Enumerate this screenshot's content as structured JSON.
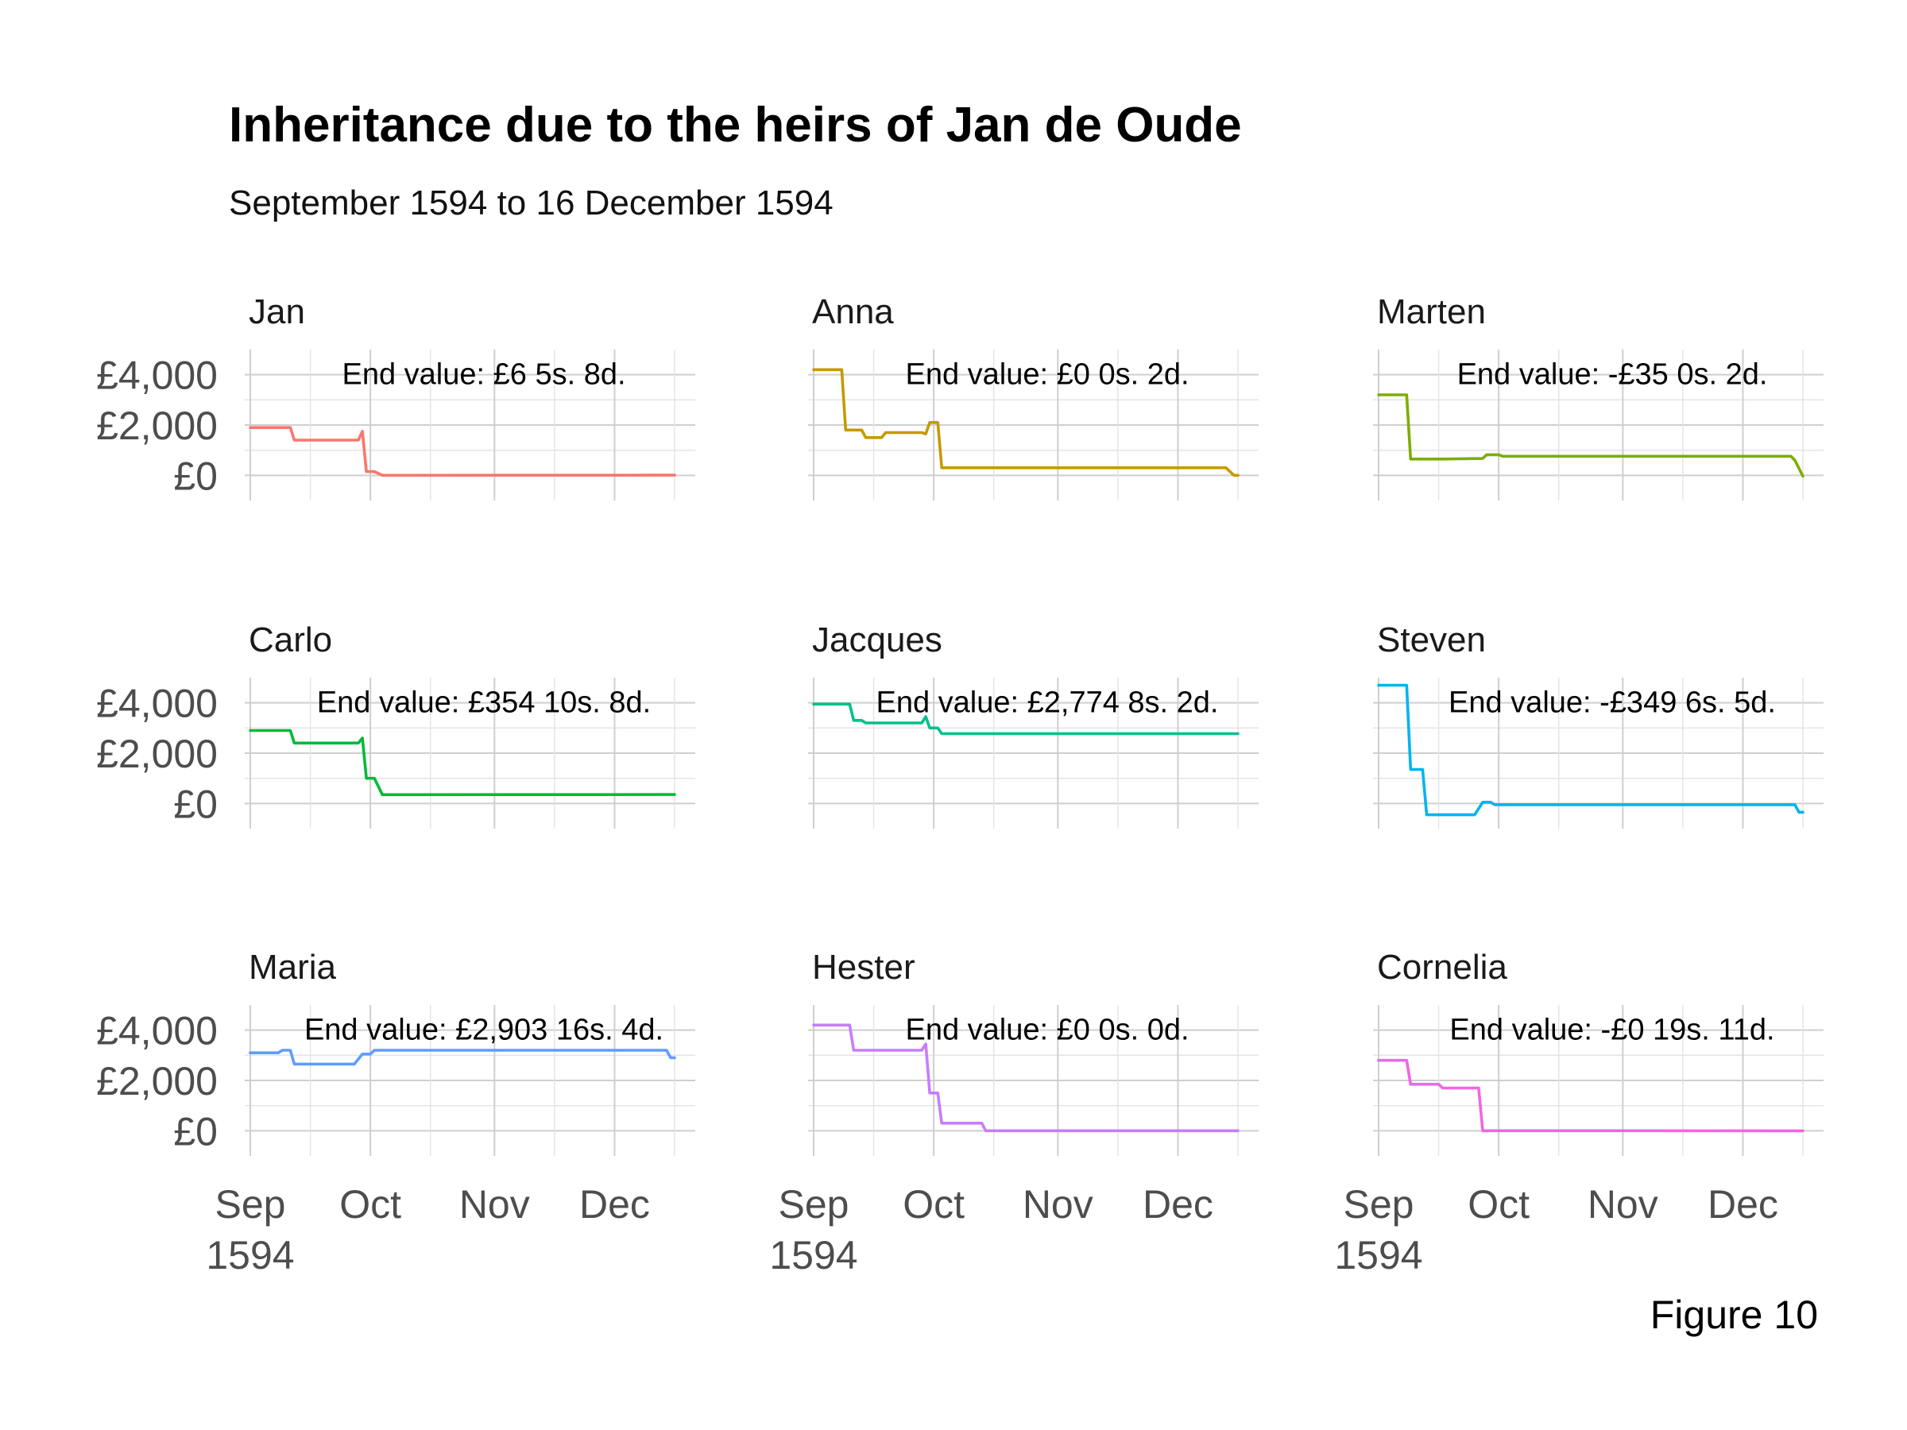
{
  "title": "Inheritance due to the heirs of Jan de Oude",
  "subtitle": "September 1594 to 16 December 1594",
  "caption": "Figure 10",
  "chart_data": {
    "type": "line",
    "facets": "3x3",
    "x_axis": {
      "range": [
        "1594-09-01",
        "1594-12-16"
      ],
      "ticks": [
        {
          "date": "1594-09-01",
          "label": "Sep",
          "sublabel": "1594"
        },
        {
          "date": "1594-10-01",
          "label": "Oct",
          "sublabel": ""
        },
        {
          "date": "1594-11-01",
          "label": "Nov",
          "sublabel": ""
        },
        {
          "date": "1594-12-01",
          "label": "Dec",
          "sublabel": ""
        }
      ],
      "minor_ticks": [
        "1594-09-16",
        "1594-10-16",
        "1594-11-16",
        "1594-12-16"
      ]
    },
    "y_axis": {
      "range": [
        -1000,
        5000
      ],
      "ticks": [
        {
          "value": 0,
          "label": "£0"
        },
        {
          "value": 2000,
          "label": "£2,000"
        },
        {
          "value": 4000,
          "label": "£4,000"
        }
      ],
      "minor_ticks": [
        1000,
        3000
      ]
    },
    "grid": true,
    "legend": "none",
    "series": [
      {
        "name": "Jan",
        "color": "#F8766D",
        "annotation": "End value: £6 5s. 8d.",
        "points": [
          [
            "1594-09-01",
            1900
          ],
          [
            "1594-09-11",
            1900
          ],
          [
            "1594-09-12",
            1400
          ],
          [
            "1594-09-28",
            1400
          ],
          [
            "1594-09-29",
            1750
          ],
          [
            "1594-09-30",
            150
          ],
          [
            "1594-10-02",
            150
          ],
          [
            "1594-10-04",
            0
          ],
          [
            "1594-12-16",
            6
          ]
        ]
      },
      {
        "name": "Anna",
        "color": "#C49A00",
        "annotation": "End value: £0 0s. 2d.",
        "points": [
          [
            "1594-09-01",
            4200
          ],
          [
            "1594-09-08",
            4200
          ],
          [
            "1594-09-09",
            1800
          ],
          [
            "1594-09-13",
            1800
          ],
          [
            "1594-09-14",
            1500
          ],
          [
            "1594-09-18",
            1500
          ],
          [
            "1594-09-19",
            1700
          ],
          [
            "1594-09-28",
            1700
          ],
          [
            "1594-09-29",
            1650
          ],
          [
            "1594-09-30",
            2100
          ],
          [
            "1594-10-02",
            2100
          ],
          [
            "1594-10-03",
            300
          ],
          [
            "1594-12-13",
            300
          ],
          [
            "1594-12-15",
            0
          ],
          [
            "1594-12-16",
            0
          ]
        ]
      },
      {
        "name": "Marten",
        "color": "#7CAE00",
        "annotation": "End value: -£35 0s. 2d.",
        "points": [
          [
            "1594-09-01",
            3200
          ],
          [
            "1594-09-08",
            3200
          ],
          [
            "1594-09-09",
            650
          ],
          [
            "1594-09-17",
            650
          ],
          [
            "1594-09-27",
            670
          ],
          [
            "1594-09-28",
            820
          ],
          [
            "1594-10-01",
            820
          ],
          [
            "1594-10-02",
            760
          ],
          [
            "1594-12-13",
            760
          ],
          [
            "1594-12-14",
            600
          ],
          [
            "1594-12-16",
            -35
          ]
        ]
      },
      {
        "name": "Carlo",
        "color": "#00BA38",
        "annotation": "End value: £354 10s. 8d.",
        "points": [
          [
            "1594-09-01",
            2900
          ],
          [
            "1594-09-11",
            2900
          ],
          [
            "1594-09-12",
            2400
          ],
          [
            "1594-09-28",
            2400
          ],
          [
            "1594-09-29",
            2600
          ],
          [
            "1594-09-30",
            1000
          ],
          [
            "1594-10-02",
            1000
          ],
          [
            "1594-10-04",
            350
          ],
          [
            "1594-12-16",
            354
          ]
        ]
      },
      {
        "name": "Jacques",
        "color": "#00C08B",
        "annotation": "End value: £2,774 8s. 2d.",
        "points": [
          [
            "1594-09-01",
            3950
          ],
          [
            "1594-09-10",
            3950
          ],
          [
            "1594-09-11",
            3300
          ],
          [
            "1594-09-13",
            3300
          ],
          [
            "1594-09-14",
            3200
          ],
          [
            "1594-09-28",
            3200
          ],
          [
            "1594-09-29",
            3450
          ],
          [
            "1594-09-30",
            3000
          ],
          [
            "1594-10-02",
            3000
          ],
          [
            "1594-10-03",
            2774
          ],
          [
            "1594-12-16",
            2774
          ]
        ]
      },
      {
        "name": "Steven",
        "color": "#00B4EF",
        "annotation": "End value: -£349 6s. 5d.",
        "points": [
          [
            "1594-09-01",
            4700
          ],
          [
            "1594-09-08",
            4700
          ],
          [
            "1594-09-09",
            1350
          ],
          [
            "1594-09-12",
            1350
          ],
          [
            "1594-09-13",
            -450
          ],
          [
            "1594-09-25",
            -450
          ],
          [
            "1594-09-27",
            50
          ],
          [
            "1594-09-29",
            50
          ],
          [
            "1594-09-30",
            -50
          ],
          [
            "1594-12-14",
            -50
          ],
          [
            "1594-12-15",
            -349
          ],
          [
            "1594-12-16",
            -349
          ]
        ]
      },
      {
        "name": "Maria",
        "color": "#619CFF",
        "annotation": "End value: £2,903 16s. 4d.",
        "points": [
          [
            "1594-09-01",
            3100
          ],
          [
            "1594-09-08",
            3100
          ],
          [
            "1594-09-09",
            3200
          ],
          [
            "1594-09-11",
            3200
          ],
          [
            "1594-09-12",
            2650
          ],
          [
            "1594-09-27",
            2650
          ],
          [
            "1594-09-29",
            3050
          ],
          [
            "1594-10-01",
            3050
          ],
          [
            "1594-10-02",
            3200
          ],
          [
            "1594-12-14",
            3200
          ],
          [
            "1594-12-15",
            2903
          ],
          [
            "1594-12-16",
            2903
          ]
        ]
      },
      {
        "name": "Hester",
        "color": "#C77CFF",
        "annotation": "End value: £0 0s. 0d.",
        "points": [
          [
            "1594-09-01",
            4200
          ],
          [
            "1594-09-10",
            4200
          ],
          [
            "1594-09-11",
            3200
          ],
          [
            "1594-09-28",
            3200
          ],
          [
            "1594-09-29",
            3450
          ],
          [
            "1594-09-30",
            1500
          ],
          [
            "1594-10-02",
            1500
          ],
          [
            "1594-10-03",
            300
          ],
          [
            "1594-10-13",
            300
          ],
          [
            "1594-10-14",
            0
          ],
          [
            "1594-12-16",
            0
          ]
        ]
      },
      {
        "name": "Cornelia",
        "color": "#F564E3",
        "annotation": "End value: -£0 19s. 11d.",
        "points": [
          [
            "1594-09-01",
            2800
          ],
          [
            "1594-09-08",
            2800
          ],
          [
            "1594-09-09",
            1850
          ],
          [
            "1594-09-16",
            1850
          ],
          [
            "1594-09-17",
            1700
          ],
          [
            "1594-09-26",
            1700
          ],
          [
            "1594-09-27",
            0
          ],
          [
            "1594-12-16",
            -1
          ]
        ]
      }
    ]
  }
}
